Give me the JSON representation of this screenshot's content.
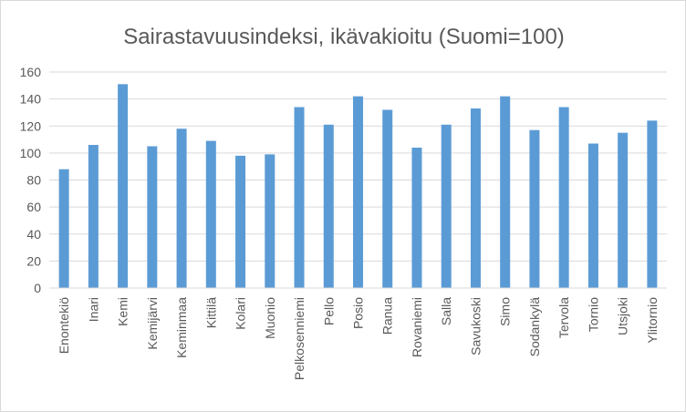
{
  "chart_data": {
    "type": "bar",
    "title": "Sairastavuusindeksi, ikävakioitu (Suomi=100)",
    "xlabel": "",
    "ylabel": "",
    "ylim": [
      0,
      160
    ],
    "yticks": [
      0,
      20,
      40,
      60,
      80,
      100,
      120,
      140,
      160
    ],
    "grid": true,
    "legend": "none",
    "bar_color": "#5b9bd5",
    "categories": [
      "Enontekiö",
      "Inari",
      "Kemi",
      "Kemijärvi",
      "Keminmaa",
      "Kittilä",
      "Kolari",
      "Muonio",
      "Pelkosenniemi",
      "Pello",
      "Posio",
      "Ranua",
      "Rovaniemi",
      "Salla",
      "Savukoski",
      "Simo",
      "Sodankylä",
      "Tervola",
      "Tornio",
      "Utsjoki",
      "Ylitornio"
    ],
    "values": [
      88,
      106,
      151,
      105,
      118,
      109,
      98,
      99,
      134,
      121,
      142,
      132,
      104,
      121,
      133,
      142,
      117,
      134,
      107,
      115,
      124
    ]
  }
}
